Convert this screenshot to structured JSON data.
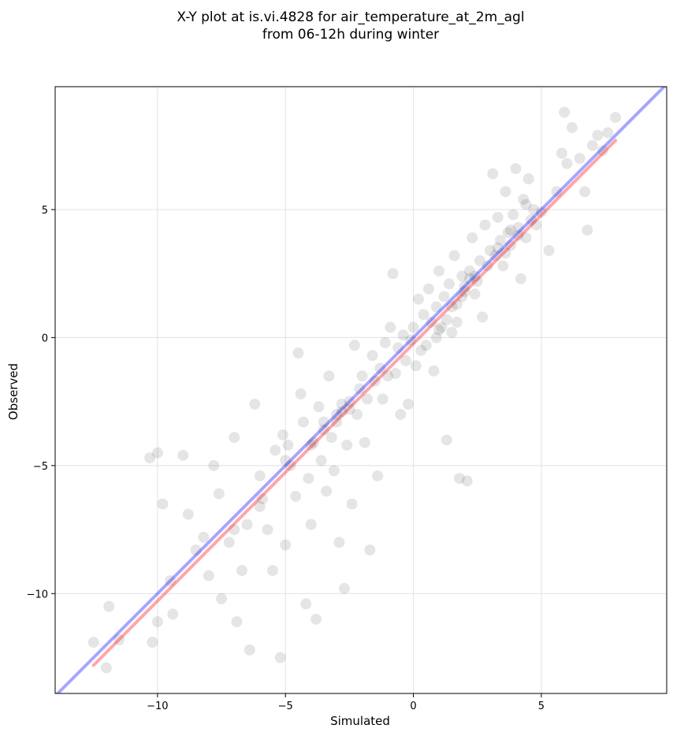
{
  "chart_data": {
    "type": "scatter",
    "title_lines": [
      "X-Y plot at is.vi.4828 for air_temperature_at_2m_agl",
      "from 06-12h during winter"
    ],
    "xlabel": "Simulated",
    "ylabel": "Observed",
    "xlim": [
      -14,
      9.9
    ],
    "ylim": [
      -13.9,
      9.8
    ],
    "xticks": [
      -10,
      -5,
      0,
      5
    ],
    "yticks": [
      -10,
      -5,
      0,
      5
    ],
    "tick_labels_x": [
      "−10",
      "−5",
      "0",
      "5"
    ],
    "tick_labels_y": [
      "−10",
      "−5",
      "0",
      "5"
    ],
    "grid": true,
    "legend": "none",
    "marker_color": "#000000",
    "marker_alpha": 0.1,
    "points_sample": [
      [
        -12.5,
        -11.9
      ],
      [
        -12.0,
        -12.9
      ],
      [
        -11.9,
        -10.5
      ],
      [
        -11.5,
        -11.8
      ],
      [
        -10.2,
        -11.9
      ],
      [
        -10.0,
        -11.1
      ],
      [
        -10.3,
        -4.7
      ],
      [
        -10.0,
        -4.5
      ],
      [
        -9.8,
        -6.5
      ],
      [
        -9.5,
        -9.5
      ],
      [
        -9.4,
        -10.8
      ],
      [
        -9.0,
        -4.6
      ],
      [
        -8.8,
        -6.9
      ],
      [
        -8.5,
        -8.3
      ],
      [
        -8.2,
        -7.8
      ],
      [
        -8.0,
        -9.3
      ],
      [
        -7.8,
        -5.0
      ],
      [
        -7.6,
        -6.1
      ],
      [
        -7.5,
        -10.2
      ],
      [
        -7.2,
        -8.0
      ],
      [
        -7.0,
        -3.9
      ],
      [
        -6.9,
        -11.1
      ],
      [
        -6.7,
        -9.1
      ],
      [
        -6.5,
        -7.3
      ],
      [
        -6.4,
        -12.2
      ],
      [
        -6.2,
        -2.6
      ],
      [
        -6.0,
        -5.4
      ],
      [
        -5.9,
        -6.3
      ],
      [
        -5.7,
        -7.5
      ],
      [
        -5.5,
        -9.1
      ],
      [
        -5.4,
        -4.4
      ],
      [
        -5.2,
        -12.5
      ],
      [
        -5.1,
        -3.8
      ],
      [
        -5.0,
        -8.1
      ],
      [
        -4.9,
        -4.2
      ],
      [
        -4.8,
        -5.0
      ],
      [
        -4.6,
        -6.2
      ],
      [
        -4.5,
        -0.6
      ],
      [
        -4.4,
        -2.2
      ],
      [
        -4.3,
        -3.3
      ],
      [
        -4.2,
        -10.4
      ],
      [
        -4.1,
        -5.5
      ],
      [
        -4.0,
        -7.3
      ],
      [
        -3.9,
        -4.1
      ],
      [
        -3.8,
        -11.0
      ],
      [
        -3.7,
        -2.7
      ],
      [
        -3.6,
        -4.8
      ],
      [
        -3.5,
        -3.3
      ],
      [
        -3.4,
        -6.0
      ],
      [
        -3.3,
        -1.5
      ],
      [
        -3.2,
        -3.9
      ],
      [
        -3.1,
        -5.2
      ],
      [
        -3.0,
        -3.3
      ],
      [
        -2.9,
        -8.0
      ],
      [
        -2.8,
        -2.6
      ],
      [
        -2.7,
        -9.8
      ],
      [
        -2.6,
        -4.2
      ],
      [
        -2.5,
        -2.8
      ],
      [
        -2.4,
        -6.5
      ],
      [
        -2.3,
        -0.3
      ],
      [
        -2.2,
        -3.0
      ],
      [
        -2.1,
        -2.0
      ],
      [
        -2.0,
        -1.5
      ],
      [
        -1.9,
        -4.1
      ],
      [
        -1.8,
        -2.4
      ],
      [
        -1.7,
        -8.3
      ],
      [
        -1.6,
        -0.7
      ],
      [
        -1.5,
        -1.7
      ],
      [
        -1.4,
        -5.4
      ],
      [
        -1.3,
        -1.2
      ],
      [
        -1.2,
        -2.4
      ],
      [
        -1.1,
        -0.2
      ],
      [
        -1.0,
        -1.5
      ],
      [
        -0.9,
        0.4
      ],
      [
        -0.8,
        2.5
      ],
      [
        -0.7,
        -1.4
      ],
      [
        -0.6,
        -0.4
      ],
      [
        -0.5,
        -3.0
      ],
      [
        -0.4,
        0.1
      ],
      [
        -0.3,
        -0.9
      ],
      [
        -0.2,
        -2.6
      ],
      [
        -0.1,
        -0.1
      ],
      [
        0.0,
        0.4
      ],
      [
        0.1,
        -1.1
      ],
      [
        0.2,
        1.5
      ],
      [
        0.3,
        -0.5
      ],
      [
        0.4,
        0.9
      ],
      [
        0.5,
        -0.3
      ],
      [
        0.6,
        1.9
      ],
      [
        0.7,
        0.6
      ],
      [
        0.8,
        -1.3
      ],
      [
        0.9,
        1.2
      ],
      [
        1.0,
        2.6
      ],
      [
        1.1,
        0.4
      ],
      [
        1.2,
        1.6
      ],
      [
        1.3,
        -4.0
      ],
      [
        1.4,
        2.1
      ],
      [
        1.5,
        0.2
      ],
      [
        1.6,
        3.2
      ],
      [
        1.7,
        1.3
      ],
      [
        1.8,
        -5.5
      ],
      [
        1.9,
        2.4
      ],
      [
        2.0,
        1.8
      ],
      [
        2.1,
        -5.6
      ],
      [
        2.2,
        2.6
      ],
      [
        2.3,
        3.9
      ],
      [
        2.4,
        1.7
      ],
      [
        2.5,
        2.2
      ],
      [
        2.6,
        3.0
      ],
      [
        2.7,
        0.8
      ],
      [
        2.8,
        4.4
      ],
      [
        2.9,
        2.8
      ],
      [
        3.0,
        3.4
      ],
      [
        3.1,
        6.4
      ],
      [
        3.2,
        3.2
      ],
      [
        3.3,
        4.7
      ],
      [
        3.4,
        3.8
      ],
      [
        3.5,
        2.8
      ],
      [
        3.6,
        5.7
      ],
      [
        3.7,
        4.1
      ],
      [
        3.8,
        3.6
      ],
      [
        3.9,
        4.8
      ],
      [
        4.0,
        6.6
      ],
      [
        4.1,
        4.3
      ],
      [
        4.2,
        2.3
      ],
      [
        4.3,
        5.4
      ],
      [
        4.4,
        3.9
      ],
      [
        4.5,
        6.2
      ],
      [
        4.6,
        4.6
      ],
      [
        4.7,
        5.0
      ],
      [
        4.8,
        4.4
      ],
      [
        5.0,
        4.9
      ],
      [
        5.3,
        3.4
      ],
      [
        5.6,
        5.7
      ],
      [
        5.8,
        7.2
      ],
      [
        6.0,
        6.8
      ],
      [
        6.2,
        8.2
      ],
      [
        6.5,
        7.0
      ],
      [
        6.7,
        5.7
      ],
      [
        6.8,
        4.2
      ],
      [
        7.0,
        7.5
      ],
      [
        7.2,
        7.9
      ],
      [
        7.4,
        7.3
      ],
      [
        7.6,
        8.0
      ],
      [
        7.9,
        8.6
      ],
      [
        5.9,
        8.8
      ],
      [
        4.4,
        5.2
      ],
      [
        3.8,
        4.2
      ],
      [
        2.0,
        2.0
      ],
      [
        1.9,
        1.6
      ],
      [
        2.2,
        2.3
      ],
      [
        1.5,
        1.2
      ],
      [
        1.7,
        0.6
      ],
      [
        1.3,
        0.7
      ],
      [
        1.0,
        0.3
      ],
      [
        2.4,
        2.4
      ],
      [
        3.3,
        3.5
      ],
      [
        3.6,
        3.3
      ],
      [
        4.1,
        4.0
      ],
      [
        0.9,
        0.0
      ],
      [
        -2.8,
        -2.9
      ],
      [
        -3.0,
        -3.0
      ],
      [
        -2.5,
        -2.5
      ],
      [
        -3.5,
        -3.6
      ],
      [
        -4.0,
        -4.2
      ],
      [
        -5.0,
        -4.8
      ],
      [
        -6.0,
        -6.6
      ],
      [
        -7.0,
        -7.5
      ]
    ],
    "series": [
      {
        "values": [
          [
            -12.5,
            -12.8
          ],
          [
            7.9,
            7.7
          ]
        ],
        "color": "#ff0000"
      },
      {
        "values": [
          [
            -14.0,
            -14.0
          ],
          [
            9.9,
            9.9
          ]
        ],
        "color": "#0000ff"
      }
    ]
  }
}
